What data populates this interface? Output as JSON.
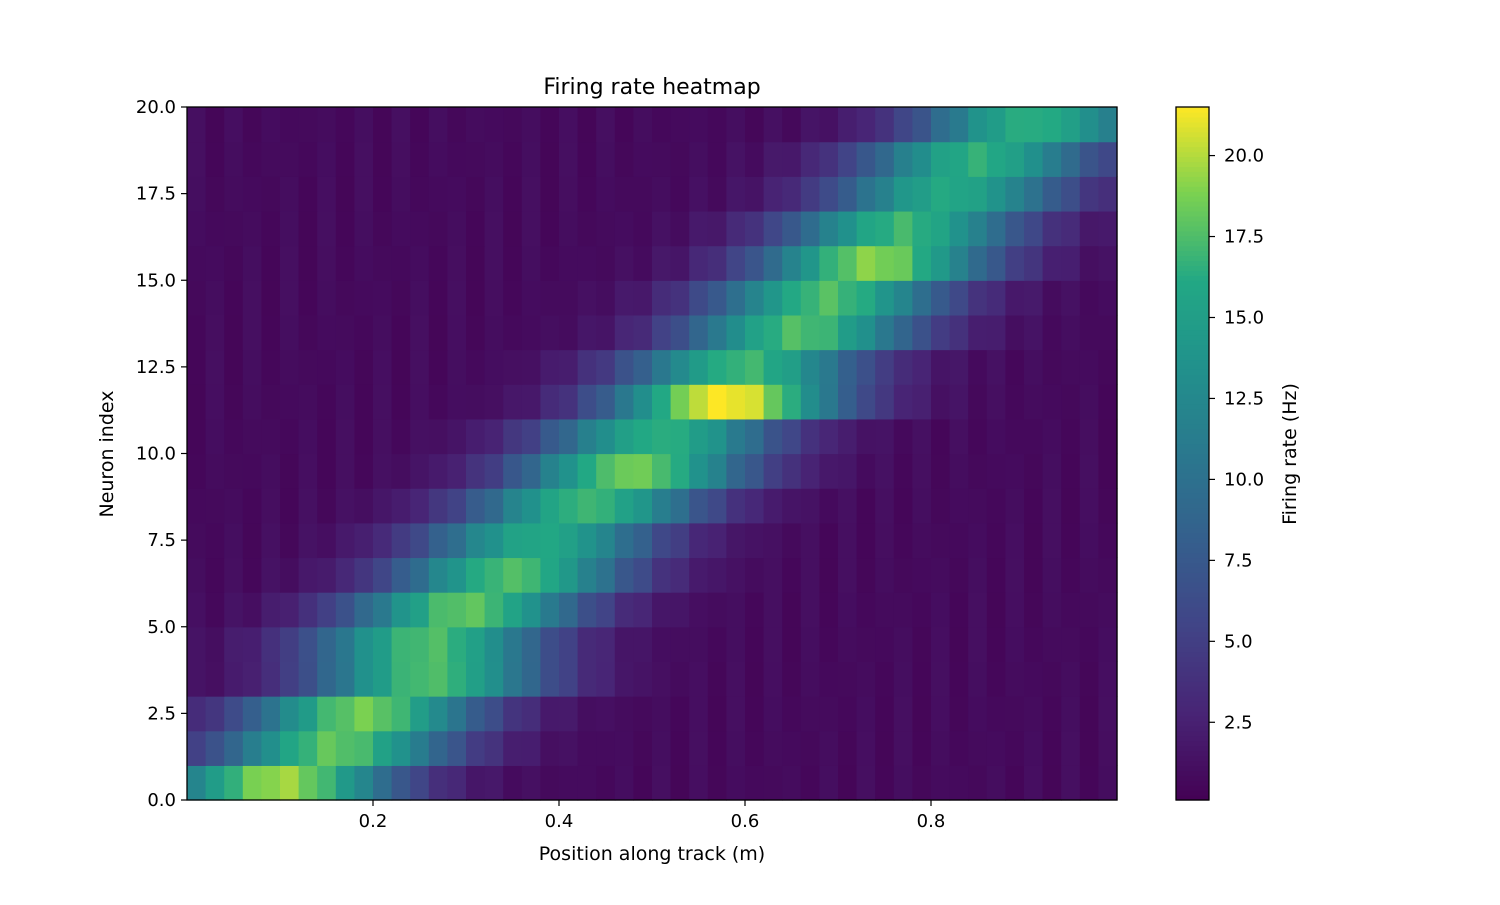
{
  "chart_data": {
    "type": "heatmap",
    "title": "Firing rate heatmap",
    "xlabel": "Position along track (m)",
    "ylabel": "Neuron index",
    "xlim": [
      0.0,
      1.0
    ],
    "ylim": [
      0.0,
      20.0
    ],
    "x_ticks": [
      0.2,
      0.4,
      0.6,
      0.8
    ],
    "x_tick_labels": [
      "0.2",
      "0.4",
      "0.6",
      "0.8"
    ],
    "y_ticks": [
      0.0,
      2.5,
      5.0,
      7.5,
      10.0,
      12.5,
      15.0,
      17.5,
      20.0
    ],
    "y_tick_labels": [
      "0.0",
      "2.5",
      "5.0",
      "7.5",
      "10.0",
      "12.5",
      "15.0",
      "17.5",
      "20.0"
    ],
    "n_neurons": 20,
    "n_position_bins": 50,
    "colormap": "viridis",
    "vmin": 0.1,
    "vmax": 21.5,
    "colorbar": {
      "label": "Firing rate (Hz)",
      "ticks": [
        2.5,
        5.0,
        7.5,
        10.0,
        12.5,
        15.0,
        17.5,
        20.0
      ],
      "tick_labels": [
        "2.5",
        "5.0",
        "7.5",
        "10.0",
        "12.5",
        "15.0",
        "17.5",
        "20.0"
      ]
    },
    "place_fields": [
      {
        "neuron": 0,
        "center_m": 0.1,
        "peak_hz": 19.5,
        "width_m": 0.09
      },
      {
        "neuron": 1,
        "center_m": 0.16,
        "peak_hz": 18.0,
        "width_m": 0.09
      },
      {
        "neuron": 2,
        "center_m": 0.19,
        "peak_hz": 18.5,
        "width_m": 0.09
      },
      {
        "neuron": 3,
        "center_m": 0.26,
        "peak_hz": 17.5,
        "width_m": 0.09
      },
      {
        "neuron": 4,
        "center_m": 0.26,
        "peak_hz": 17.5,
        "width_m": 0.09
      },
      {
        "neuron": 5,
        "center_m": 0.3,
        "peak_hz": 18.0,
        "width_m": 0.09
      },
      {
        "neuron": 6,
        "center_m": 0.35,
        "peak_hz": 17.5,
        "width_m": 0.09
      },
      {
        "neuron": 7,
        "center_m": 0.38,
        "peak_hz": 16.0,
        "width_m": 0.09
      },
      {
        "neuron": 8,
        "center_m": 0.43,
        "peak_hz": 17.0,
        "width_m": 0.09
      },
      {
        "neuron": 9,
        "center_m": 0.48,
        "peak_hz": 18.5,
        "width_m": 0.09
      },
      {
        "neuron": 10,
        "center_m": 0.51,
        "peak_hz": 16.5,
        "width_m": 0.09
      },
      {
        "neuron": 11,
        "center_m": 0.58,
        "peak_hz": 21.5,
        "width_m": 0.09
      },
      {
        "neuron": 12,
        "center_m": 0.6,
        "peak_hz": 17.0,
        "width_m": 0.09
      },
      {
        "neuron": 13,
        "center_m": 0.66,
        "peak_hz": 17.5,
        "width_m": 0.09
      },
      {
        "neuron": 14,
        "center_m": 0.69,
        "peak_hz": 17.5,
        "width_m": 0.09
      },
      {
        "neuron": 15,
        "center_m": 0.74,
        "peak_hz": 19.0,
        "width_m": 0.09
      },
      {
        "neuron": 16,
        "center_m": 0.77,
        "peak_hz": 17.0,
        "width_m": 0.09
      },
      {
        "neuron": 17,
        "center_m": 0.82,
        "peak_hz": 16.0,
        "width_m": 0.09
      },
      {
        "neuron": 18,
        "center_m": 0.85,
        "peak_hz": 16.5,
        "width_m": 0.09
      },
      {
        "neuron": 19,
        "center_m": 0.91,
        "peak_hz": 16.5,
        "width_m": 0.09
      }
    ],
    "baseline_hz": 0.8
  }
}
